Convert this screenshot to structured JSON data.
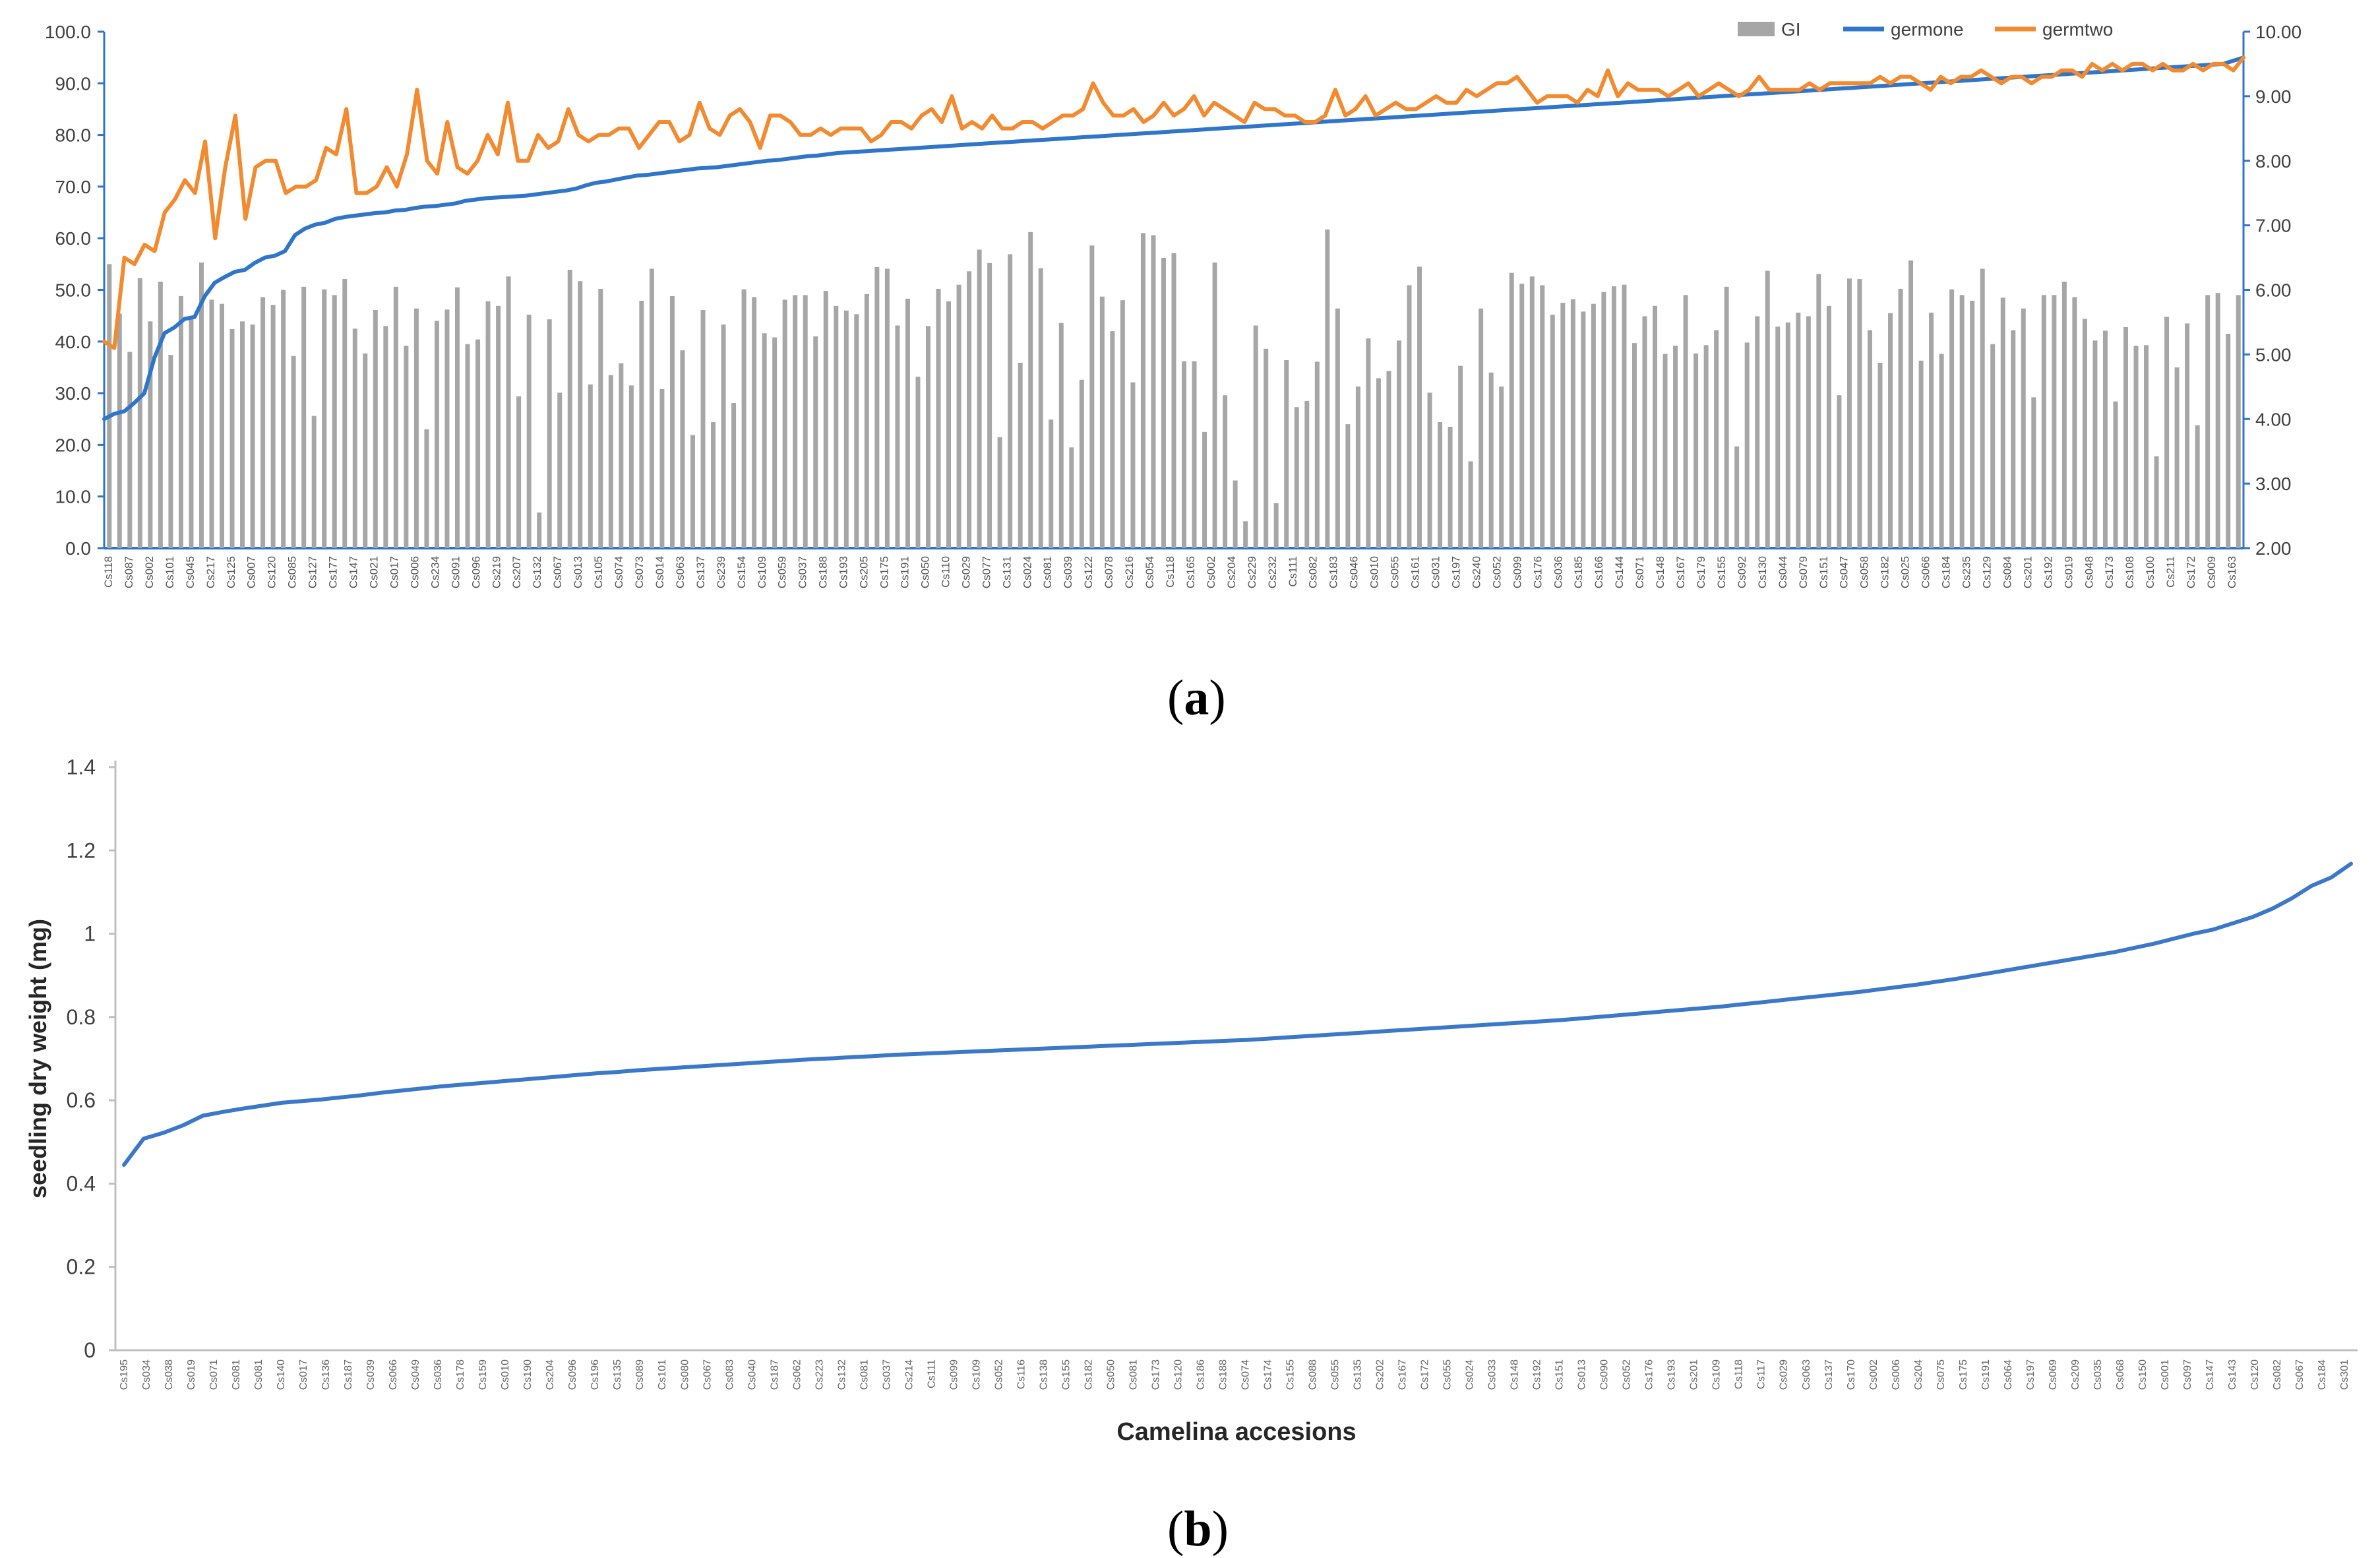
{
  "panels": {
    "a": {
      "open": "(",
      "letter": "a",
      "close": ")"
    },
    "b": {
      "open": "(",
      "letter": "b",
      "close": ")"
    }
  },
  "chart_data": [
    {
      "id": "a",
      "type": "bar+line",
      "title": "",
      "legend": {
        "placement": "top-right",
        "entries": [
          "GI",
          "germone",
          "germtwo"
        ]
      },
      "x_tick_labels": [
        "Cs118",
        "Cs087",
        "Cs002",
        "Cs101",
        "Cs045",
        "Cs217",
        "Cs125",
        "Cs007",
        "Cs120",
        "Cs085",
        "Cs127",
        "Cs177",
        "Cs147",
        "Cs021",
        "Cs017",
        "Cs006",
        "Cs234",
        "Cs091",
        "Cs096",
        "Cs219",
        "Cs207",
        "Cs132",
        "Cs067",
        "Cs013",
        "Cs105",
        "Cs074",
        "Cs073",
        "Cs014",
        "Cs063",
        "Cs137",
        "Cs239",
        "Cs154",
        "Cs109",
        "Cs059",
        "Cs037",
        "Cs188",
        "Cs193",
        "Cs205",
        "Cs175",
        "Cs191",
        "Cs050",
        "Cs110",
        "Cs029",
        "Cs077",
        "Cs131",
        "Cs024",
        "Cs081",
        "Cs039",
        "Cs122",
        "Cs078",
        "Cs216",
        "Cs054",
        "Cs118",
        "Cs165",
        "Cs002",
        "Cs204",
        "Cs229",
        "Cs232",
        "Cs111",
        "Cs082",
        "Cs183",
        "Cs046",
        "Cs010",
        "Cs055",
        "Cs161",
        "Cs031",
        "Cs197",
        "Cs240",
        "Cs052",
        "Cs099",
        "Cs176",
        "Cs036",
        "Cs185",
        "Cs166",
        "Cs144",
        "Cs071",
        "Cs148",
        "Cs167",
        "Cs179",
        "Cs155",
        "Cs092",
        "Cs130",
        "Cs044",
        "Cs079",
        "Cs151",
        "Cs047",
        "Cs058",
        "Cs182",
        "Cs025",
        "Cs066",
        "Cs184",
        "Cs235",
        "Cs129",
        "Cs084",
        "Cs201",
        "Cs192",
        "Cs019",
        "Cs048",
        "Cs173",
        "Cs108",
        "Cs100",
        "Cs211",
        "Cs172",
        "Cs009",
        "Cs163"
      ],
      "y_left": {
        "ticks": [
          "0.0",
          "10.0",
          "20.0",
          "30.0",
          "40.0",
          "50.0",
          "60.0",
          "70.0",
          "80.0",
          "90.0",
          "100.0"
        ],
        "range": [
          0,
          100
        ]
      },
      "y_right": {
        "ticks": [
          "2.00",
          "3.00",
          "4.00",
          "5.00",
          "6.00",
          "7.00",
          "8.00",
          "9.00",
          "10.00"
        ],
        "range": [
          2,
          10
        ]
      },
      "series": [
        {
          "name": "GI",
          "axis": "left",
          "kind": "bar",
          "color": "#a6a6a6",
          "values": [
            55.0,
            45.4,
            38.0,
            52.3,
            43.9,
            51.6,
            37.4,
            48.8,
            44.5,
            55.3,
            48.1,
            47.3,
            42.4,
            43.9,
            43.3,
            48.6,
            47.1,
            50.0,
            37.2,
            50.6,
            25.6,
            50.1,
            49.0,
            52.1,
            42.5,
            37.7,
            46.1,
            43.0,
            50.6,
            39.2,
            46.4,
            23.0,
            44.0,
            46.2,
            50.5,
            39.5,
            40.4,
            47.8,
            46.9,
            52.6,
            29.4,
            45.2,
            6.9,
            44.3,
            30.1,
            53.9,
            51.7,
            31.7,
            50.2,
            33.5,
            35.8,
            31.5,
            47.9,
            54.1,
            30.8,
            48.8,
            38.3,
            21.9,
            46.1,
            24.4,
            43.3,
            28.1,
            50.1,
            48.6,
            41.6,
            40.8,
            48.1,
            49.0,
            49.0,
            41.0,
            49.8,
            46.9,
            46.0,
            45.3,
            49.2,
            54.4,
            54.1,
            43.1,
            48.3,
            33.2,
            43.0,
            50.2,
            47.8,
            51.0,
            53.6,
            57.8,
            55.2,
            21.5,
            56.9,
            35.9,
            61.2,
            54.2,
            24.9,
            43.6,
            19.5,
            32.6,
            58.6,
            48.7,
            42.0,
            48.0,
            32.1,
            61.0,
            60.6,
            56.2,
            57.1,
            36.2,
            36.2,
            22.5,
            55.3,
            29.6,
            13.1,
            5.2,
            43.1,
            38.6,
            8.7,
            36.4,
            27.3,
            28.5,
            36.1,
            61.7,
            46.4,
            24.0,
            31.3,
            40.6,
            32.9,
            34.3,
            40.2,
            50.9,
            54.5,
            30.1,
            24.4,
            23.5,
            35.3,
            16.8,
            46.4,
            34.0,
            31.3,
            53.3,
            51.2,
            52.6,
            50.9,
            45.2,
            47.5,
            48.2,
            45.8,
            47.3,
            49.6,
            50.7,
            51.0,
            39.7,
            44.9,
            46.9,
            37.6,
            39.2,
            49.0,
            37.7,
            39.3,
            42.2,
            50.6,
            19.7,
            39.8,
            44.9,
            53.7,
            42.9,
            43.7,
            45.6,
            44.9,
            53.1,
            46.9,
            29.6,
            52.2,
            52.1,
            42.2,
            35.9,
            45.5,
            50.2,
            55.7,
            36.3,
            45.6,
            37.6,
            50.1,
            49.0,
            47.9,
            54.1,
            39.5,
            48.5,
            42.2,
            46.4,
            29.2,
            49.0,
            49.0,
            51.6,
            48.6,
            44.4,
            40.2,
            42.1,
            28.4,
            42.8,
            39.2,
            39.3,
            17.8,
            44.8,
            35.0,
            43.5,
            23.8,
            49.0,
            49.4,
            41.5,
            49.0
          ]
        },
        {
          "name": "germone",
          "axis": "right",
          "kind": "line",
          "color": "#2f75c9",
          "values": [
            4.0,
            4.08,
            4.12,
            4.25,
            4.4,
            4.95,
            5.33,
            5.42,
            5.55,
            5.58,
            5.9,
            6.11,
            6.2,
            6.28,
            6.31,
            6.42,
            6.5,
            6.53,
            6.6,
            6.85,
            6.95,
            7.01,
            7.04,
            7.1,
            7.13,
            7.15,
            7.17,
            7.19,
            7.2,
            7.23,
            7.24,
            7.27,
            7.29,
            7.3,
            7.32,
            7.34,
            7.38,
            7.4,
            7.42,
            7.43,
            7.44,
            7.45,
            7.46,
            7.48,
            7.5,
            7.52,
            7.54,
            7.57,
            7.62,
            7.66,
            7.68,
            7.71,
            7.74,
            7.77,
            7.78,
            7.8,
            7.82,
            7.84,
            7.86,
            7.88,
            7.89,
            7.9,
            7.92,
            7.94,
            7.96,
            7.98,
            8.0,
            8.01,
            8.03,
            8.05,
            8.07,
            8.08,
            8.1,
            8.12,
            8.13,
            8.14,
            8.15,
            8.16,
            8.17,
            8.18,
            8.19,
            8.2,
            8.21,
            8.22,
            8.23,
            8.24,
            8.25,
            8.26,
            8.27,
            8.28,
            8.29,
            8.3,
            8.31,
            8.32,
            8.33,
            8.34,
            8.35,
            8.36,
            8.37,
            8.38,
            8.39,
            8.4,
            8.41,
            8.42,
            8.43,
            8.44,
            8.45,
            8.46,
            8.47,
            8.48,
            8.49,
            8.5,
            8.51,
            8.52,
            8.53,
            8.54,
            8.55,
            8.56,
            8.57,
            8.58,
            8.59,
            8.6,
            8.61,
            8.62,
            8.63,
            8.64,
            8.65,
            8.66,
            8.67,
            8.68,
            8.69,
            8.7,
            8.71,
            8.72,
            8.73,
            8.74,
            8.75,
            8.76,
            8.77,
            8.78,
            8.79,
            8.8,
            8.81,
            8.82,
            8.83,
            8.84,
            8.85,
            8.86,
            8.87,
            8.88,
            8.89,
            8.9,
            8.91,
            8.92,
            8.93,
            8.94,
            8.95,
            8.96,
            8.97,
            8.98,
            8.99,
            9.0,
            9.01,
            9.02,
            9.03,
            9.04,
            9.05,
            9.06,
            9.07,
            9.08,
            9.09,
            9.1,
            9.11,
            9.12,
            9.13,
            9.14,
            9.15,
            9.16,
            9.17,
            9.18,
            9.19,
            9.2,
            9.21,
            9.22,
            9.23,
            9.24,
            9.25,
            9.26,
            9.27,
            9.28,
            9.29,
            9.3,
            9.31,
            9.32,
            9.33,
            9.34,
            9.35,
            9.36,
            9.37,
            9.38,
            9.39,
            9.4,
            9.41,
            9.42,
            9.43,
            9.44,
            9.45,
            9.46,
            9.47,
            9.48,
            9.49,
            9.5,
            9.55,
            9.6
          ]
        },
        {
          "name": "germtwo",
          "axis": "right",
          "kind": "line",
          "color": "#f28a30",
          "values": [
            5.2,
            5.1,
            6.5,
            6.4,
            6.7,
            6.6,
            7.2,
            7.4,
            7.7,
            7.5,
            8.3,
            6.8,
            7.9,
            8.7,
            7.1,
            7.9,
            8.0,
            8.0,
            7.5,
            7.6,
            7.6,
            7.7,
            8.2,
            8.1,
            8.8,
            7.5,
            7.5,
            7.6,
            7.9,
            7.6,
            8.1,
            9.1,
            8.0,
            7.8,
            8.6,
            7.9,
            7.8,
            8.0,
            8.4,
            8.1,
            8.9,
            8.0,
            8.0,
            8.4,
            8.2,
            8.3,
            8.8,
            8.4,
            8.3,
            8.4,
            8.4,
            8.5,
            8.5,
            8.2,
            8.4,
            8.6,
            8.6,
            8.3,
            8.4,
            8.9,
            8.5,
            8.4,
            8.7,
            8.8,
            8.6,
            8.2,
            8.7,
            8.7,
            8.6,
            8.4,
            8.4,
            8.5,
            8.4,
            8.5,
            8.5,
            8.5,
            8.3,
            8.4,
            8.6,
            8.6,
            8.5,
            8.7,
            8.8,
            8.6,
            9.0,
            8.5,
            8.6,
            8.5,
            8.7,
            8.5,
            8.5,
            8.6,
            8.6,
            8.5,
            8.6,
            8.7,
            8.7,
            8.8,
            9.2,
            8.9,
            8.7,
            8.7,
            8.8,
            8.6,
            8.7,
            8.9,
            8.7,
            8.8,
            9.0,
            8.7,
            8.9,
            8.8,
            8.7,
            8.6,
            8.9,
            8.8,
            8.8,
            8.7,
            8.7,
            8.6,
            8.6,
            8.7,
            9.1,
            8.7,
            8.8,
            9.0,
            8.7,
            8.8,
            8.9,
            8.8,
            8.8,
            8.9,
            9.0,
            8.9,
            8.9,
            9.1,
            9.0,
            9.1,
            9.2,
            9.2,
            9.3,
            9.1,
            8.9,
            9.0,
            9.0,
            9.0,
            8.9,
            9.1,
            9.0,
            9.4,
            9.0,
            9.2,
            9.1,
            9.1,
            9.1,
            9.0,
            9.1,
            9.2,
            9.0,
            9.1,
            9.2,
            9.1,
            9.0,
            9.1,
            9.3,
            9.1,
            9.1,
            9.1,
            9.1,
            9.2,
            9.1,
            9.2,
            9.2,
            9.2,
            9.2,
            9.2,
            9.3,
            9.2,
            9.3,
            9.3,
            9.2,
            9.1,
            9.3,
            9.2,
            9.3,
            9.3,
            9.4,
            9.3,
            9.2,
            9.3,
            9.3,
            9.2,
            9.3,
            9.3,
            9.4,
            9.4,
            9.3,
            9.5,
            9.4,
            9.5,
            9.4,
            9.5,
            9.5,
            9.4,
            9.5,
            9.4,
            9.4,
            9.5,
            9.4,
            9.5,
            9.5,
            9.4,
            9.6
          ]
        }
      ]
    },
    {
      "id": "b",
      "type": "line",
      "title": "",
      "xlabel": "Camelina accesions",
      "ylabel": "seedling dry weight (mg)",
      "ylim": [
        0,
        1.4
      ],
      "y_ticks": [
        "0",
        "0.2",
        "0.4",
        "0.6",
        "0.8",
        "1",
        "1.2",
        "1.4"
      ],
      "x_tick_labels": [
        "Cs195",
        "Cs034",
        "Cs038",
        "Cs019",
        "Cs071",
        "Cs081",
        "Cs081",
        "Cs140",
        "Cs017",
        "Cs136",
        "Cs187",
        "Cs039",
        "Cs066",
        "Cs049",
        "Cs036",
        "Cs178",
        "Cs159",
        "Cs010",
        "Cs190",
        "Cs204",
        "Cs096",
        "Cs196",
        "Cs135",
        "Cs089",
        "Cs101",
        "Cs080",
        "Cs067",
        "Cs083",
        "Cs040",
        "Cs187",
        "Cs062",
        "Cs223",
        "Cs132",
        "Cs081",
        "Cs037",
        "Cs214",
        "Cs111",
        "Cs099",
        "Cs109",
        "Cs052",
        "Cs116",
        "Cs138",
        "Cs155",
        "Cs182",
        "Cs050",
        "Cs081",
        "Cs173",
        "Cs120",
        "Cs186",
        "Cs188",
        "Cs074",
        "Cs174",
        "Cs155",
        "Cs088",
        "Cs055",
        "Cs135",
        "Cs202",
        "Cs167",
        "Cs172",
        "Cs055",
        "Cs024",
        "Cs033",
        "Cs148",
        "Cs192",
        "Cs151",
        "Cs013",
        "Cs090",
        "Cs052",
        "Cs176",
        "Cs193",
        "Cs201",
        "Cs109",
        "Cs118",
        "Cs117",
        "Cs029",
        "Cs063",
        "Cs137",
        "Cs170",
        "Cs002",
        "Cs006",
        "Cs204",
        "Cs075",
        "Cs175",
        "Cs191",
        "Cs064",
        "Cs197",
        "Cs069",
        "Cs209",
        "Cs035",
        "Cs068",
        "Cs150",
        "Cs001",
        "Cs097",
        "Cs147",
        "Cs143",
        "Cs120",
        "Cs082",
        "Cs067",
        "Cs184",
        "Cs301"
      ],
      "series": [
        {
          "name": "",
          "color": "#3b78c9",
          "values": [
            0.445,
            0.508,
            0.522,
            0.54,
            0.563,
            0.572,
            0.58,
            0.587,
            0.594,
            0.598,
            0.602,
            0.607,
            0.612,
            0.618,
            0.623,
            0.628,
            0.633,
            0.637,
            0.641,
            0.645,
            0.649,
            0.653,
            0.657,
            0.661,
            0.665,
            0.668,
            0.672,
            0.675,
            0.678,
            0.681,
            0.684,
            0.687,
            0.69,
            0.693,
            0.696,
            0.699,
            0.701,
            0.704,
            0.706,
            0.709,
            0.711,
            0.713,
            0.715,
            0.717,
            0.719,
            0.721,
            0.723,
            0.725,
            0.727,
            0.729,
            0.731,
            0.733,
            0.735,
            0.737,
            0.739,
            0.741,
            0.743,
            0.745,
            0.748,
            0.751,
            0.754,
            0.757,
            0.76,
            0.763,
            0.766,
            0.769,
            0.772,
            0.775,
            0.778,
            0.781,
            0.784,
            0.787,
            0.79,
            0.793,
            0.797,
            0.801,
            0.805,
            0.809,
            0.813,
            0.817,
            0.821,
            0.825,
            0.83,
            0.835,
            0.84,
            0.845,
            0.85,
            0.855,
            0.86,
            0.866,
            0.872,
            0.878,
            0.885,
            0.892,
            0.9,
            0.908,
            0.916,
            0.924,
            0.932,
            0.94,
            0.948,
            0.956,
            0.966,
            0.976,
            0.988,
            1.0,
            1.01,
            1.025,
            1.04,
            1.06,
            1.085,
            1.115,
            1.135,
            1.168
          ]
        }
      ]
    }
  ]
}
